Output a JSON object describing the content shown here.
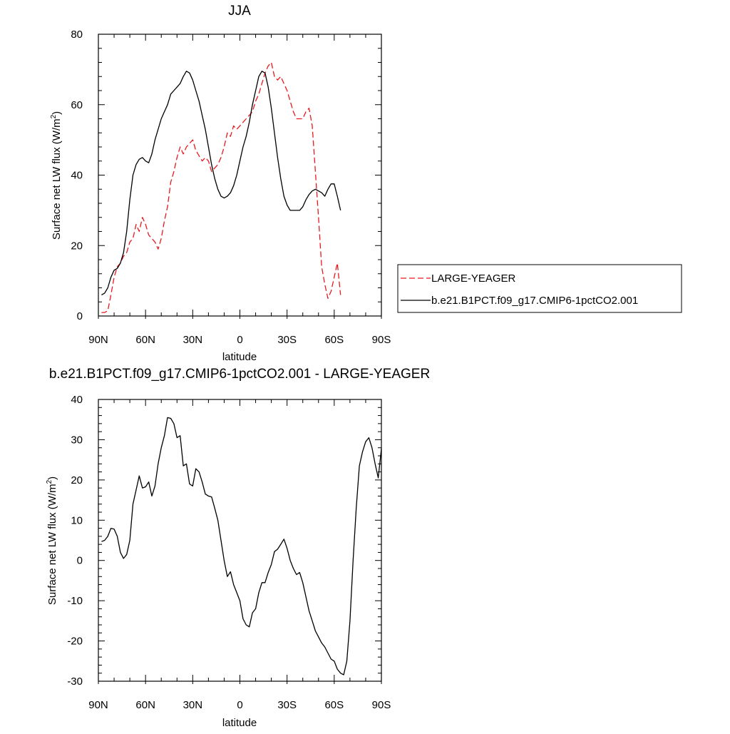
{
  "chart_data": [
    {
      "type": "line",
      "title": "JJA",
      "xlabel": "latitude",
      "ylabel": "Surface net LW flux (W/m",
      "ylabel_sup": "2",
      "ylabel_close": ")",
      "xlim": [
        90,
        -90
      ],
      "ylim": [
        0,
        80
      ],
      "x_ticks": [
        90,
        60,
        30,
        0,
        -30,
        -60,
        -90
      ],
      "x_tick_labels": [
        "90N",
        "60N",
        "30N",
        "0",
        "30S",
        "60S",
        "90S"
      ],
      "y_ticks": [
        0,
        20,
        40,
        60,
        80
      ],
      "y_tick_labels": [
        "0",
        "20",
        "40",
        "60",
        "80"
      ],
      "grid": false,
      "legend_position": "right",
      "series": [
        {
          "name": "LARGE-YEAGER",
          "color": "#e8191e",
          "style": "dashed",
          "points": [
            [
              88,
              1
            ],
            [
              86,
              1
            ],
            [
              84,
              1.5
            ],
            [
              82,
              6
            ],
            [
              80,
              11
            ],
            [
              78,
              14
            ],
            [
              76,
              15
            ],
            [
              74,
              17
            ],
            [
              72,
              18
            ],
            [
              70,
              21
            ],
            [
              68,
              22
            ],
            [
              66,
              26
            ],
            [
              64,
              24
            ],
            [
              62,
              28
            ],
            [
              60,
              26
            ],
            [
              58,
              23
            ],
            [
              56,
              22
            ],
            [
              54,
              21
            ],
            [
              52,
              19
            ],
            [
              50,
              22
            ],
            [
              48,
              27
            ],
            [
              46,
              31
            ],
            [
              44,
              38
            ],
            [
              42,
              41
            ],
            [
              40,
              45
            ],
            [
              38,
              48
            ],
            [
              36,
              46
            ],
            [
              34,
              48
            ],
            [
              32,
              49
            ],
            [
              30,
              50
            ],
            [
              28,
              47
            ],
            [
              26,
              45.5
            ],
            [
              24,
              44
            ],
            [
              22,
              45
            ],
            [
              20,
              44
            ],
            [
              18,
              41
            ],
            [
              16,
              42
            ],
            [
              14,
              43
            ],
            [
              12,
              45
            ],
            [
              10,
              48
            ],
            [
              8,
              52
            ],
            [
              6,
              51
            ],
            [
              4,
              54
            ],
            [
              2,
              53
            ],
            [
              0,
              54
            ],
            [
              -2,
              55
            ],
            [
              -4,
              56
            ],
            [
              -6,
              57
            ],
            [
              -8,
              58
            ],
            [
              -10,
              61
            ],
            [
              -12,
              63
            ],
            [
              -14,
              66
            ],
            [
              -16,
              69
            ],
            [
              -18,
              71
            ],
            [
              -20,
              72
            ],
            [
              -22,
              68
            ],
            [
              -24,
              67
            ],
            [
              -26,
              68
            ],
            [
              -28,
              66
            ],
            [
              -30,
              64
            ],
            [
              -32,
              61
            ],
            [
              -34,
              58
            ],
            [
              -36,
              56
            ],
            [
              -38,
              56
            ],
            [
              -40,
              56
            ],
            [
              -42,
              58
            ],
            [
              -44,
              59
            ],
            [
              -46,
              54
            ],
            [
              -48,
              41
            ],
            [
              -50,
              28
            ],
            [
              -52,
              14
            ],
            [
              -54,
              9
            ],
            [
              -56,
              5
            ],
            [
              -58,
              7
            ],
            [
              -60,
              11
            ],
            [
              -62,
              15
            ],
            [
              -64,
              6
            ]
          ]
        },
        {
          "name": "b.e21.B1PCT.f09_g17.CMIP6-1pctCO2.001",
          "color": "#000000",
          "style": "solid",
          "points": [
            [
              88,
              6
            ],
            [
              86,
              6.5
            ],
            [
              84,
              8
            ],
            [
              82,
              11
            ],
            [
              80,
              13
            ],
            [
              78,
              13.5
            ],
            [
              76,
              15
            ],
            [
              74,
              18
            ],
            [
              72,
              24
            ],
            [
              70,
              33
            ],
            [
              68,
              40
            ],
            [
              66,
              43
            ],
            [
              64,
              44.5
            ],
            [
              62,
              45
            ],
            [
              60,
              44
            ],
            [
              58,
              43.5
            ],
            [
              56,
              46
            ],
            [
              54,
              50
            ],
            [
              52,
              53
            ],
            [
              50,
              56
            ],
            [
              48,
              58
            ],
            [
              46,
              60
            ],
            [
              44,
              63
            ],
            [
              42,
              64
            ],
            [
              40,
              65
            ],
            [
              38,
              66
            ],
            [
              36,
              68
            ],
            [
              34,
              69.5
            ],
            [
              32,
              69
            ],
            [
              30,
              67
            ],
            [
              28,
              64
            ],
            [
              26,
              61
            ],
            [
              24,
              57
            ],
            [
              22,
              53
            ],
            [
              20,
              48
            ],
            [
              18,
              43
            ],
            [
              16,
              39
            ],
            [
              14,
              36
            ],
            [
              12,
              34
            ],
            [
              10,
              33.5
            ],
            [
              8,
              34
            ],
            [
              6,
              35
            ],
            [
              4,
              37
            ],
            [
              2,
              40
            ],
            [
              0,
              44
            ],
            [
              -2,
              48
            ],
            [
              -4,
              51
            ],
            [
              -6,
              55
            ],
            [
              -8,
              60
            ],
            [
              -10,
              64
            ],
            [
              -12,
              68
            ],
            [
              -14,
              69.5
            ],
            [
              -16,
              69
            ],
            [
              -18,
              65
            ],
            [
              -20,
              59
            ],
            [
              -22,
              52
            ],
            [
              -24,
              45
            ],
            [
              -26,
              39
            ],
            [
              -28,
              34
            ],
            [
              -30,
              31.5
            ],
            [
              -32,
              30
            ],
            [
              -34,
              30
            ],
            [
              -36,
              30
            ],
            [
              -38,
              30
            ],
            [
              -40,
              31
            ],
            [
              -42,
              33
            ],
            [
              -44,
              34.5
            ],
            [
              -46,
              35.5
            ],
            [
              -48,
              36
            ],
            [
              -50,
              35.5
            ],
            [
              -52,
              35
            ],
            [
              -54,
              34
            ],
            [
              -56,
              36
            ],
            [
              -58,
              37.5
            ],
            [
              -60,
              37.5
            ],
            [
              -62,
              34
            ],
            [
              -64,
              30
            ]
          ]
        }
      ]
    },
    {
      "type": "line",
      "title": "b.e21.B1PCT.f09_g17.CMIP6-1pctCO2.001 - LARGE-YEAGER",
      "xlabel": "latitude",
      "ylabel": "Surface net LW flux (W/m",
      "ylabel_sup": "2",
      "ylabel_close": ")",
      "xlim": [
        90,
        -90
      ],
      "ylim": [
        -30,
        40
      ],
      "x_ticks": [
        90,
        60,
        30,
        0,
        -30,
        -60,
        -90
      ],
      "x_tick_labels": [
        "90N",
        "60N",
        "30N",
        "0",
        "30S",
        "60S",
        "90S"
      ],
      "y_ticks": [
        -30,
        -20,
        -10,
        0,
        10,
        20,
        30,
        40
      ],
      "y_tick_labels": [
        "-30",
        "-20",
        "-10",
        "0",
        "10",
        "20",
        "30",
        "40"
      ],
      "grid": false,
      "series": [
        {
          "color": "#000000",
          "style": "solid",
          "points": [
            [
              88,
              4.7
            ],
            [
              86,
              5
            ],
            [
              84,
              6
            ],
            [
              82,
              8
            ],
            [
              80,
              7.8
            ],
            [
              78,
              6
            ],
            [
              76,
              2
            ],
            [
              74,
              0.5
            ],
            [
              72,
              1.5
            ],
            [
              70,
              5
            ],
            [
              68,
              14
            ],
            [
              66,
              17.5
            ],
            [
              64,
              21
            ],
            [
              62,
              18
            ],
            [
              60,
              18.3
            ],
            [
              58,
              19.5
            ],
            [
              56,
              16
            ],
            [
              54,
              18.5
            ],
            [
              52,
              24
            ],
            [
              50,
              28
            ],
            [
              48,
              31
            ],
            [
              46,
              35.5
            ],
            [
              44,
              35.3
            ],
            [
              42,
              34
            ],
            [
              40,
              30.5
            ],
            [
              38,
              31
            ],
            [
              36,
              23.5
            ],
            [
              34,
              24
            ],
            [
              32,
              19
            ],
            [
              30,
              18.5
            ],
            [
              28,
              22.8
            ],
            [
              26,
              22
            ],
            [
              24,
              19.5
            ],
            [
              22,
              16.5
            ],
            [
              20,
              16
            ],
            [
              18,
              15.8
            ],
            [
              16,
              13
            ],
            [
              14,
              10
            ],
            [
              12,
              5
            ],
            [
              10,
              0
            ],
            [
              8,
              -4
            ],
            [
              6,
              -2.8
            ],
            [
              4,
              -6
            ],
            [
              2,
              -8
            ],
            [
              0,
              -10
            ],
            [
              -2,
              -14.5
            ],
            [
              -4,
              -16
            ],
            [
              -6,
              -16.5
            ],
            [
              -8,
              -13
            ],
            [
              -10,
              -12
            ],
            [
              -12,
              -8
            ],
            [
              -14,
              -5.5
            ],
            [
              -16,
              -5.5
            ],
            [
              -18,
              -3
            ],
            [
              -20,
              -1
            ],
            [
              -22,
              2.2
            ],
            [
              -24,
              2.8
            ],
            [
              -26,
              4
            ],
            [
              -28,
              5.3
            ],
            [
              -30,
              3
            ],
            [
              -32,
              0
            ],
            [
              -34,
              -2
            ],
            [
              -36,
              -3.5
            ],
            [
              -38,
              -3
            ],
            [
              -40,
              -5.5
            ],
            [
              -42,
              -9
            ],
            [
              -44,
              -12.5
            ],
            [
              -46,
              -15
            ],
            [
              -48,
              -17.5
            ],
            [
              -50,
              -19
            ],
            [
              -52,
              -20.5
            ],
            [
              -54,
              -21.5
            ],
            [
              -56,
              -23
            ],
            [
              -58,
              -24.5
            ],
            [
              -60,
              -25
            ],
            [
              -62,
              -27
            ],
            [
              -64,
              -28
            ],
            [
              -66,
              -28.4
            ],
            [
              -68,
              -25
            ],
            [
              -70,
              -15
            ],
            [
              -72,
              0
            ],
            [
              -74,
              13
            ],
            [
              -76,
              23.5
            ],
            [
              -78,
              27
            ],
            [
              -80,
              29.5
            ],
            [
              -82,
              30.5
            ],
            [
              -84,
              28
            ],
            [
              -86,
              24
            ],
            [
              -88,
              20.5
            ],
            [
              -90,
              27.8
            ]
          ]
        }
      ]
    }
  ]
}
